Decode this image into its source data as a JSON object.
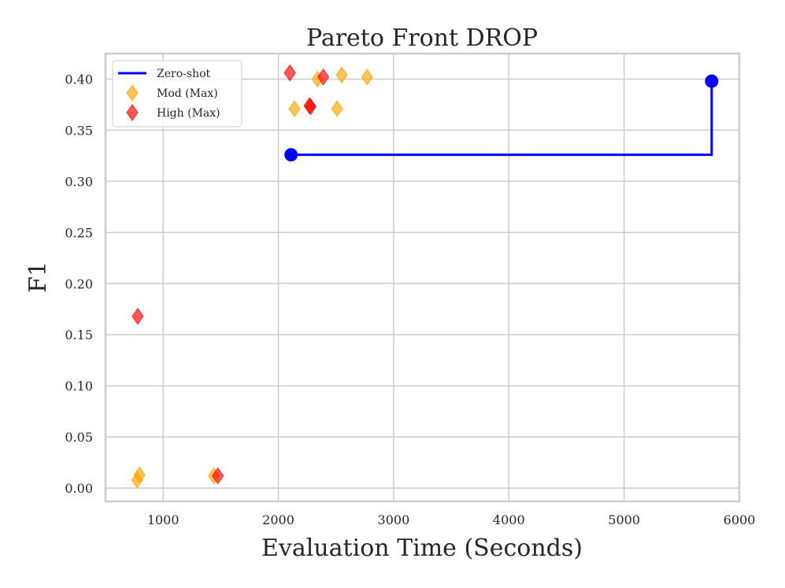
{
  "chart_data": {
    "type": "scatter",
    "title": "Pareto Front DROP",
    "xlabel": "Evaluation Time (Seconds)",
    "ylabel": "F1",
    "xlim": [
      500,
      6000
    ],
    "ylim": [
      -0.013,
      0.425
    ],
    "xticks": [
      1000,
      2000,
      3000,
      4000,
      5000,
      6000
    ],
    "yticks": [
      0.0,
      0.05,
      0.1,
      0.15,
      0.2,
      0.25,
      0.3,
      0.35,
      0.4
    ],
    "x_tick_labels": [
      "1000",
      "2000",
      "3000",
      "4000",
      "5000",
      "6000"
    ],
    "y_tick_labels": [
      "0.00",
      "0.05",
      "0.10",
      "0.15",
      "0.20",
      "0.25",
      "0.30",
      "0.35",
      "0.40"
    ],
    "grid": true,
    "legend_position": "top-left",
    "series": [
      {
        "name": "Zero-shot",
        "kind": "step-line",
        "color": "#0000ff",
        "points": [
          [
            2110,
            0.326
          ],
          [
            5760,
            0.398
          ]
        ]
      },
      {
        "name": "Mod (Max)",
        "kind": "scatter",
        "marker": "diamond",
        "color": "#ffa500",
        "points": [
          [
            775,
            0.008
          ],
          [
            795,
            0.013
          ],
          [
            1440,
            0.012
          ],
          [
            2140,
            0.371
          ],
          [
            2340,
            0.4
          ],
          [
            2550,
            0.404
          ],
          [
            2510,
            0.371
          ],
          [
            2770,
            0.402
          ]
        ]
      },
      {
        "name": "High (Max)",
        "kind": "scatter",
        "marker": "diamond",
        "color": "#ff0000",
        "points": [
          [
            780,
            0.168
          ],
          [
            1475,
            0.012
          ],
          [
            2100,
            0.406
          ],
          [
            2270,
            0.374
          ],
          [
            2280,
            0.373
          ],
          [
            2390,
            0.402
          ]
        ]
      }
    ]
  }
}
